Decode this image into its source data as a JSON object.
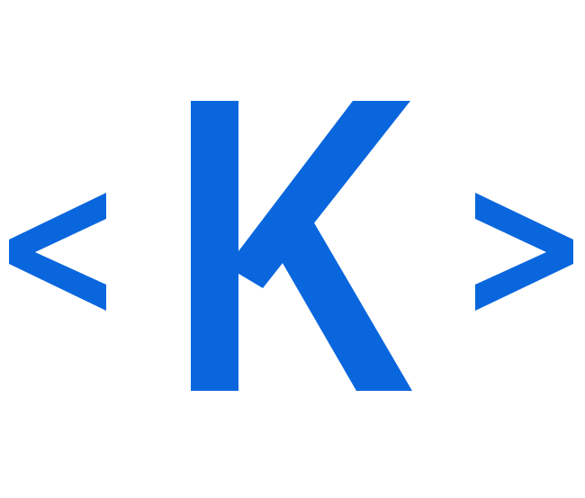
{
  "logo": {
    "letter": "K",
    "left_glyph": "<",
    "right_glyph": ">",
    "accent_color": "#0a66dd",
    "background_color": "#ffffff",
    "icon": "code-brackets-k-logo"
  }
}
